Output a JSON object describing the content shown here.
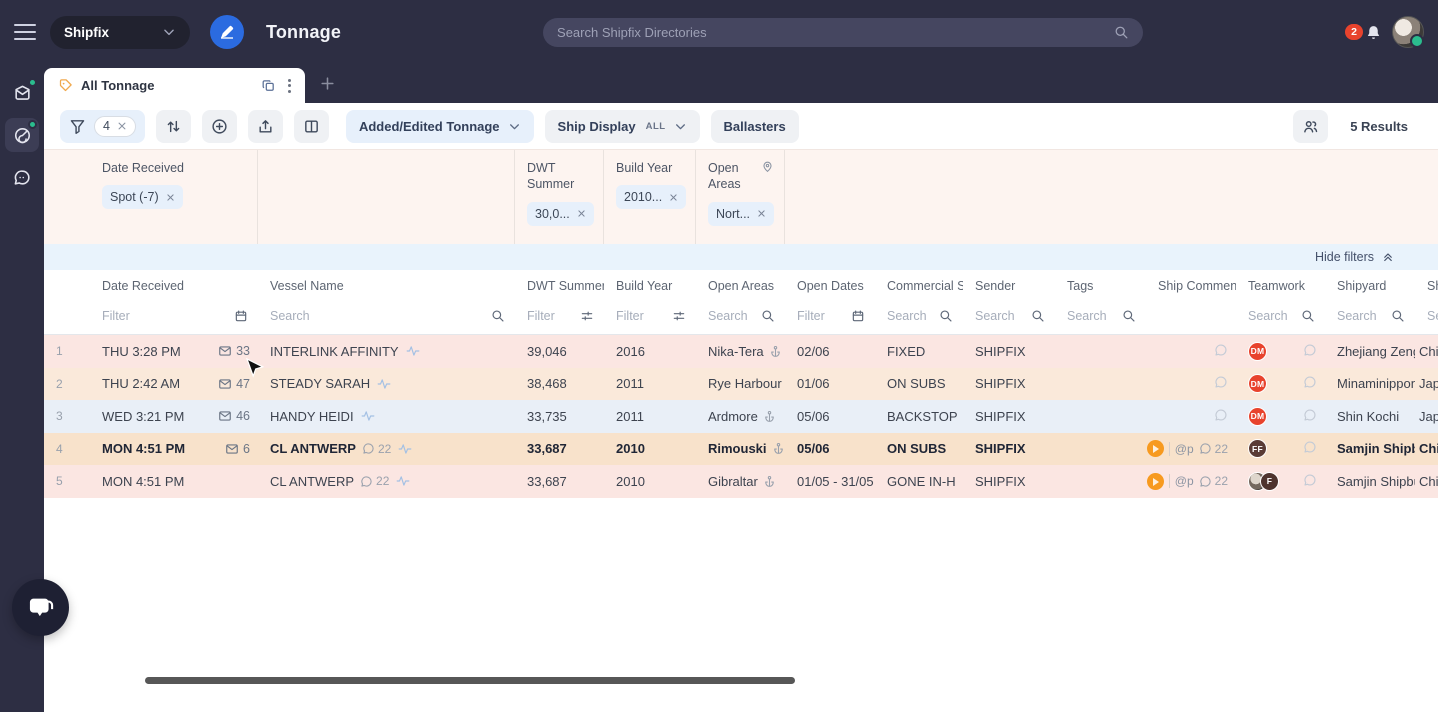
{
  "topbar": {
    "app_name": "Shipfix",
    "page_title": "Tonnage",
    "search_placeholder": "Search Shipfix Directories",
    "notification_count": "2"
  },
  "tab": {
    "label": "All Tonnage"
  },
  "toolbar": {
    "filter_count": "4",
    "view_dropdown": "Added/Edited Tonnage",
    "ship_display_label": "Ship Display",
    "ship_display_value": "ALL",
    "ballasters_label": "Ballasters",
    "results": "5 Results"
  },
  "filters": {
    "hide_label": "Hide filters",
    "groups": [
      {
        "label": "Date Received",
        "chip": "Spot (-7)"
      },
      {
        "label": "DWT Summer",
        "chip": "30,0..."
      },
      {
        "label": "Build Year",
        "chip": "2010..."
      },
      {
        "label": "Open Areas",
        "chip": "Nort..."
      }
    ]
  },
  "table": {
    "columns": [
      {
        "label": "Date Received",
        "filter": "Filter"
      },
      {
        "label": "Vessel Name",
        "filter": "Search"
      },
      {
        "label": "DWT Summer",
        "filter": "Filter"
      },
      {
        "label": "Build Year",
        "filter": "Filter"
      },
      {
        "label": "Open Areas",
        "filter": "Search"
      },
      {
        "label": "Open Dates",
        "filter": "Filter"
      },
      {
        "label": "Commercial S",
        "filter": "Search"
      },
      {
        "label": "Sender",
        "filter": "Search"
      },
      {
        "label": "Tags",
        "filter": "Search"
      },
      {
        "label": "Ship Commen",
        "filter": ""
      },
      {
        "label": "Teamwork",
        "filter": "Search"
      },
      {
        "label": "Shipyard",
        "filter": "Search"
      },
      {
        "label": "Ship",
        "filter": "Sea"
      }
    ],
    "rows": [
      {
        "num": "1",
        "date": "THU 3:28 PM",
        "mail": "33",
        "vessel": "INTERLINK AFFINITY",
        "vessel_comments": "",
        "dwt": "39,046",
        "build": "2016",
        "open_area": "Nika-Tera",
        "open_dates": "02/06",
        "commercial": "FIXED",
        "sender": "SHIPFIX",
        "tags": "",
        "ship_comment_mention": "",
        "ship_comment_count": "",
        "teamwork": [
          {
            "initials": "DM",
            "color": "#e8432d"
          }
        ],
        "shipyard": "Zhejiang Zeng",
        "country": "China",
        "tone": "rose",
        "emphasis": false
      },
      {
        "num": "2",
        "date": "THU 2:42 AM",
        "mail": "47",
        "vessel": "STEADY SARAH",
        "vessel_comments": "",
        "dwt": "38,468",
        "build": "2011",
        "open_area": "Rye Harbour",
        "open_dates": "01/06",
        "commercial": "ON SUBS",
        "sender": "SHIPFIX",
        "tags": "",
        "ship_comment_mention": "",
        "ship_comment_count": "",
        "teamwork": [
          {
            "initials": "DM",
            "color": "#e8432d"
          }
        ],
        "shipyard": "Minaminippon",
        "country": "Japan",
        "tone": "peach",
        "emphasis": false
      },
      {
        "num": "3",
        "date": "WED 3:21 PM",
        "mail": "46",
        "vessel": "HANDY HEIDI",
        "vessel_comments": "",
        "dwt": "33,735",
        "build": "2011",
        "open_area": "Ardmore",
        "open_dates": "05/06",
        "commercial": "BACKSTOP",
        "sender": "SHIPFIX",
        "tags": "",
        "ship_comment_mention": "",
        "ship_comment_count": "",
        "teamwork": [
          {
            "initials": "DM",
            "color": "#e8432d"
          }
        ],
        "shipyard": "Shin Kochi",
        "country": "Japan",
        "tone": "blue",
        "emphasis": false
      },
      {
        "num": "4",
        "date": "MON 4:51 PM",
        "mail": "6",
        "vessel": "CL ANTWERP",
        "vessel_comments": "22",
        "dwt": "33,687",
        "build": "2010",
        "open_area": "Rimouski",
        "open_dates": "05/06",
        "commercial": "ON SUBS",
        "sender": "SHIPFIX",
        "tags": "",
        "ship_comment_mention": "@p",
        "ship_comment_count": "22",
        "teamwork": [
          {
            "initials": "FF",
            "color": "#5a3b35"
          }
        ],
        "shipyard": "Samjin Shipbu",
        "country": "China",
        "tone": "amber",
        "emphasis": true
      },
      {
        "num": "5",
        "date": "MON 4:51 PM",
        "mail": "",
        "vessel": "CL ANTWERP",
        "vessel_comments": "22",
        "dwt": "33,687",
        "build": "2010",
        "open_area": "Gibraltar",
        "open_dates": "01/05 - 31/05",
        "commercial": "GONE IN-H",
        "sender": "SHIPFIX",
        "tags": "",
        "ship_comment_mention": "@p",
        "ship_comment_count": "22",
        "teamwork": [
          {
            "initials": "",
            "color": "",
            "photo": true
          },
          {
            "initials": "F",
            "color": "#4e342e"
          }
        ],
        "shipyard": "Samjin Shipbu",
        "country": "China",
        "tone": "rose",
        "emphasis": false
      }
    ]
  }
}
